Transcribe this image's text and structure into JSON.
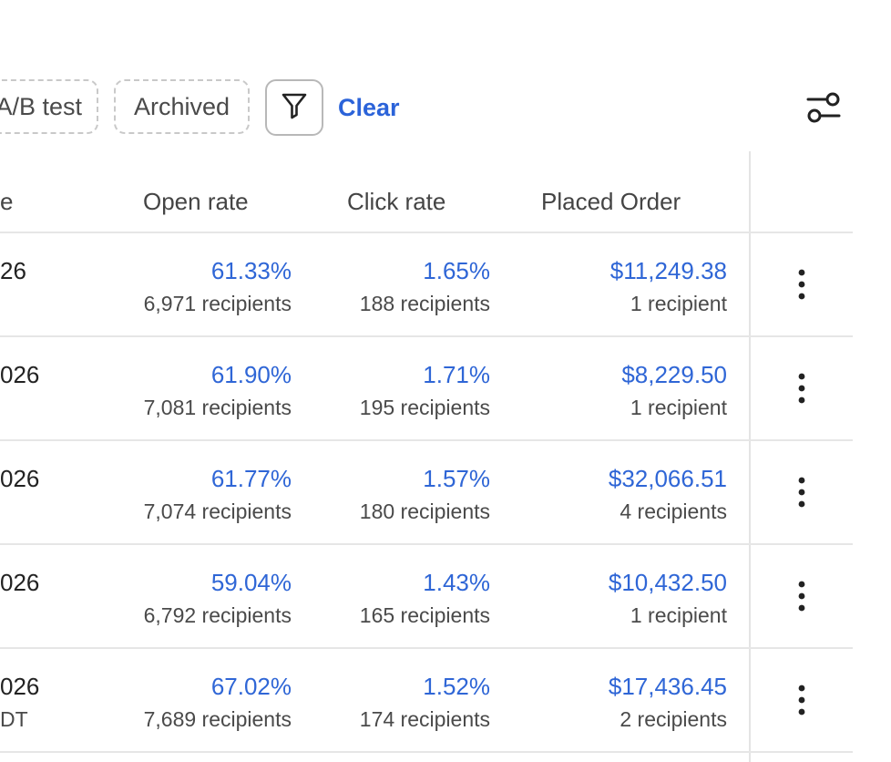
{
  "toolbar": {
    "chip_ab_label": "A/B test",
    "chip_archived_label": "Archived",
    "clear_label": "Clear",
    "filter_icon": "funnel-icon",
    "settings_icon": "sliders-icon"
  },
  "table": {
    "headers": {
      "left_partial": "e",
      "open_rate": "Open rate",
      "click_rate": "Click rate",
      "placed_order": "Placed Order"
    },
    "rows": [
      {
        "left_main": "26",
        "left_sub": "",
        "open_rate": "61.33%",
        "open_recipients": "6,971 recipients",
        "click_rate": "1.65%",
        "click_recipients": "188 recipients",
        "placed_order": "$11,249.38",
        "placed_recipients": "1 recipient"
      },
      {
        "left_main": "026",
        "left_sub": "",
        "open_rate": "61.90%",
        "open_recipients": "7,081 recipients",
        "click_rate": "1.71%",
        "click_recipients": "195 recipients",
        "placed_order": "$8,229.50",
        "placed_recipients": "1 recipient"
      },
      {
        "left_main": "026",
        "left_sub": "",
        "open_rate": "61.77%",
        "open_recipients": "7,074 recipients",
        "click_rate": "1.57%",
        "click_recipients": "180 recipients",
        "placed_order": "$32,066.51",
        "placed_recipients": "4 recipients"
      },
      {
        "left_main": "026",
        "left_sub": "",
        "open_rate": "59.04%",
        "open_recipients": "6,792 recipients",
        "click_rate": "1.43%",
        "click_recipients": "165 recipients",
        "placed_order": "$10,432.50",
        "placed_recipients": "1 recipient"
      },
      {
        "left_main": "026",
        "left_sub": "DT",
        "open_rate": "67.02%",
        "open_recipients": "7,689 recipients",
        "click_rate": "1.52%",
        "click_recipients": "174 recipients",
        "placed_order": "$17,436.45",
        "placed_recipients": "2 recipients"
      }
    ]
  },
  "colors": {
    "link_blue": "#2f66d6",
    "clear_blue": "#2b63d9",
    "divider": "#e6e6e6"
  }
}
